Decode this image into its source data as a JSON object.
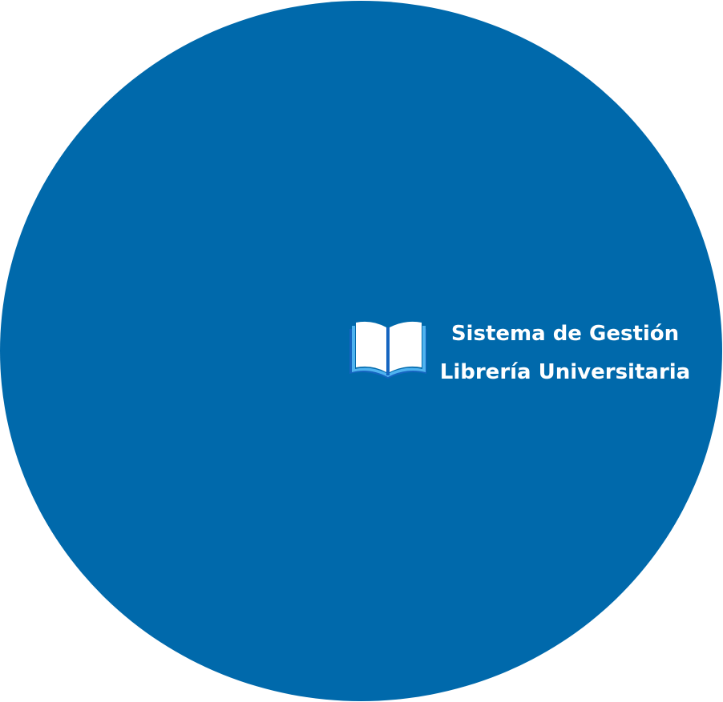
{
  "brand": {
    "logo_icon": "open-book-icon",
    "title_line1": "Sistema de Gestión",
    "title_line2": "Librería Universitaria"
  },
  "colors": {
    "circle": "#0069AB",
    "text": "#ffffff",
    "book_pages": "#ffffff",
    "book_cover": "#1565C0",
    "book_edge": "#4FB3F0"
  }
}
